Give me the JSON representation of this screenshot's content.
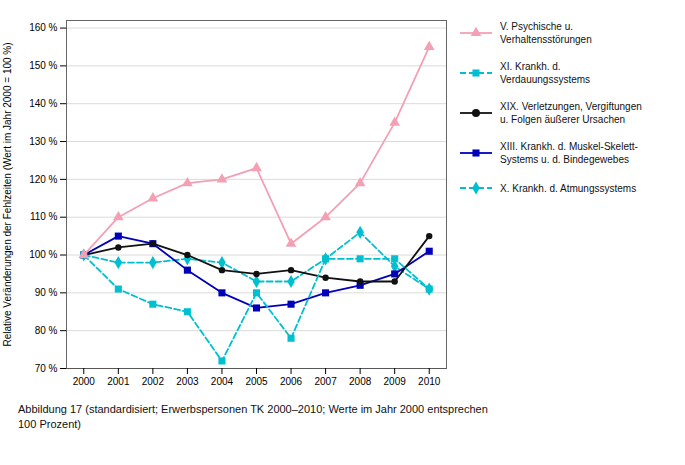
{
  "chart_data": {
    "type": "line",
    "x": [
      2000,
      2001,
      2002,
      2003,
      2004,
      2005,
      2006,
      2007,
      2008,
      2009,
      2010
    ],
    "xlim": [
      1999.5,
      2010.5
    ],
    "xticks": [
      2000,
      2001,
      2002,
      2003,
      2004,
      2005,
      2006,
      2007,
      2008,
      2009,
      2010
    ],
    "ylim": [
      70,
      162
    ],
    "yticks": [
      {
        "value": 70,
        "label": "70 %"
      },
      {
        "value": 80,
        "label": "80 %"
      },
      {
        "value": 90,
        "label": "90 %"
      },
      {
        "value": 100,
        "label": "100 %"
      },
      {
        "value": 110,
        "label": "110 %"
      },
      {
        "value": 120,
        "label": "120 %"
      },
      {
        "value": 130,
        "label": "130 %"
      },
      {
        "value": 140,
        "label": "140 %"
      },
      {
        "value": 150,
        "label": "150 %"
      },
      {
        "value": 160,
        "label": "160 %"
      }
    ],
    "ylabel": "Relative Veränderungen der Fehlzeiten (Wert im Jahr 2000 = 100 %)",
    "caption": "Abbildung 17 (standardisiert; Erwerbspersonen TK 2000–2010; Werte im Jahr 2000 entsprechen\n100 Prozent)",
    "grid": true,
    "legend": "right",
    "series": [
      {
        "name": "V. Psychische u.\nVerhaltensstörungen",
        "color": "#f4a0b4",
        "line_style": "solid",
        "marker": "triangle",
        "values": [
          100,
          110,
          115,
          119,
          120,
          123,
          103,
          110,
          119,
          135,
          155
        ]
      },
      {
        "name": "XI. Krankh. d.\nVerdauungssystems",
        "color": "#00c0d0",
        "line_style": "dashed",
        "marker": "square",
        "values": [
          100,
          91,
          87,
          85,
          72,
          90,
          78,
          99,
          99,
          99,
          91
        ]
      },
      {
        "name": "XIX. Verletzungen, Vergiftungen\nu. Folgen äußerer Ursachen",
        "color": "#111111",
        "line_style": "solid",
        "marker": "circle",
        "values": [
          100,
          102,
          103,
          100,
          96,
          95,
          96,
          94,
          93,
          93,
          105
        ]
      },
      {
        "name": "XIII. Krankh. d. Muskel-Skelett-\nSystems u. d. Bindegewebes",
        "color": "#0000bb",
        "line_style": "solid",
        "marker": "square",
        "values": [
          100,
          105,
          103,
          96,
          90,
          86,
          87,
          90,
          92,
          95,
          101
        ]
      },
      {
        "name": "X. Krankh. d. Atmungssystems",
        "color": "#00c0d0",
        "line_style": "dashed",
        "marker": "diamond",
        "values": [
          100,
          98,
          98,
          99,
          98,
          93,
          93,
          99,
          106,
          97,
          91
        ]
      }
    ]
  }
}
